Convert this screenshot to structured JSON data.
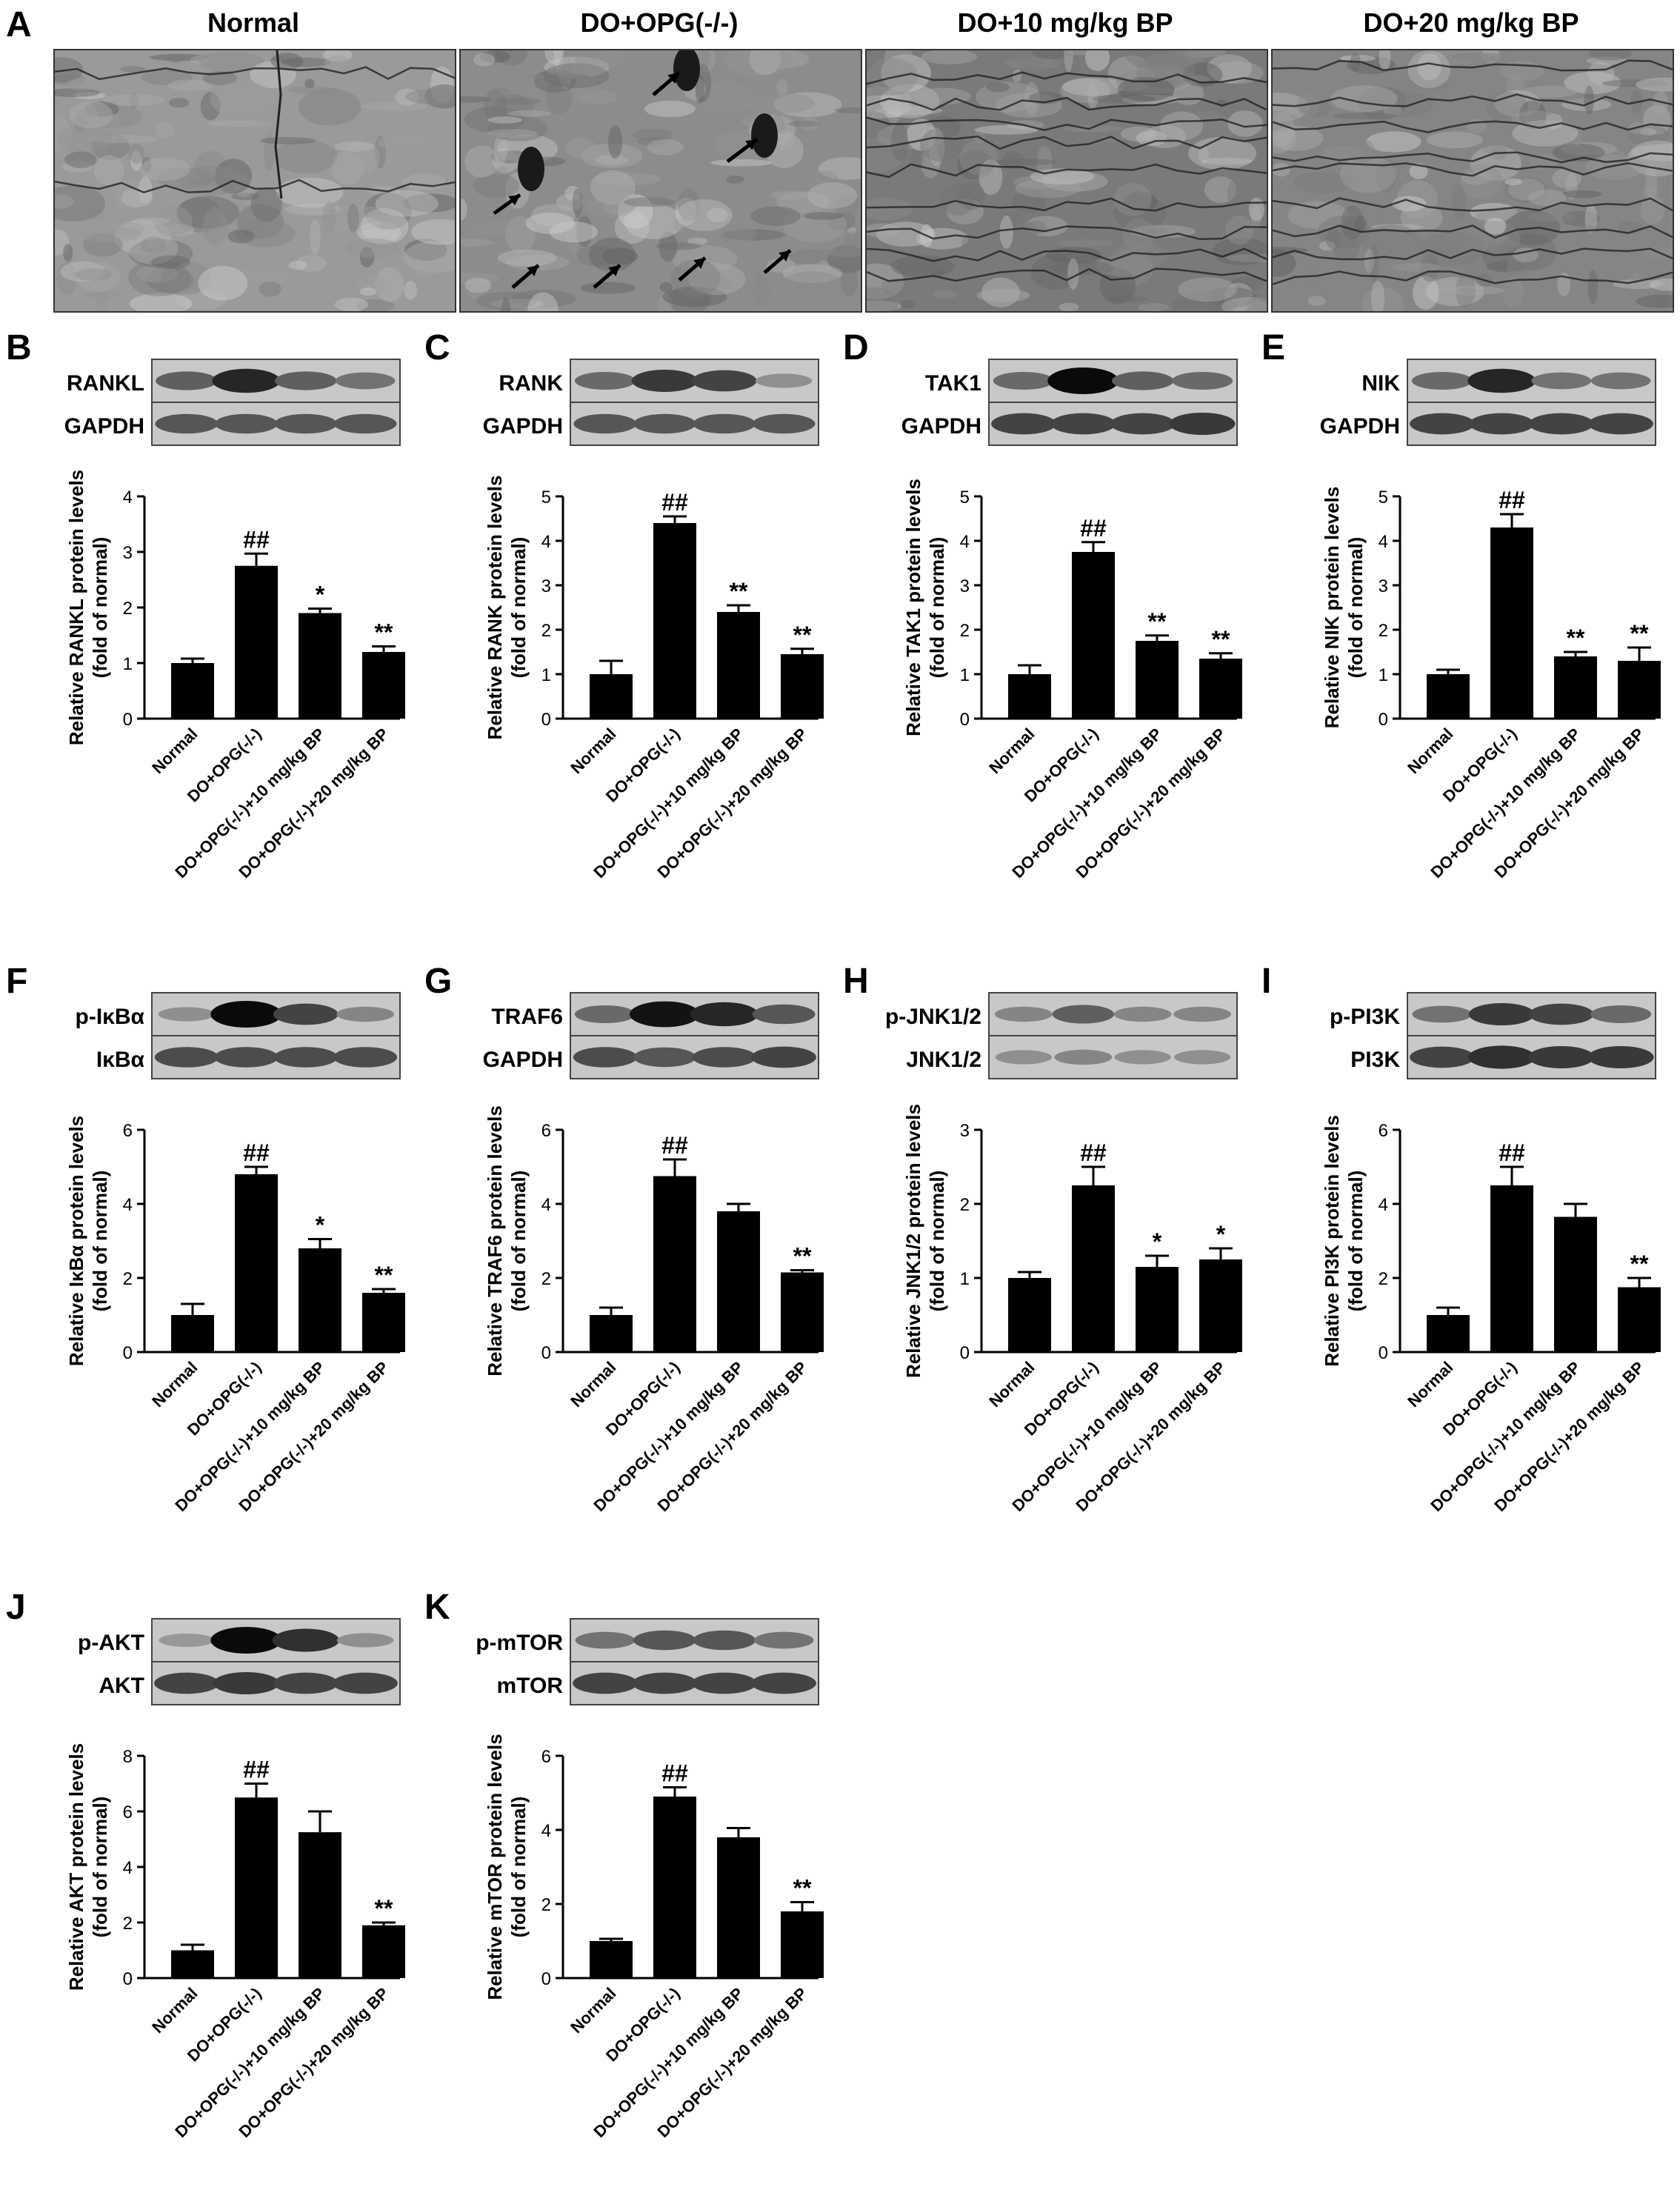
{
  "figure_label_a": "A",
  "sem_panels": [
    {
      "title": "Normal",
      "tone": "#9a9a9a",
      "arrows": 0,
      "cracks": 2
    },
    {
      "title": "DO+OPG(-/-)",
      "tone": "#8c8c8c",
      "arrows": 7,
      "cracks": 0
    },
    {
      "title": "DO+10 mg/kg  BP",
      "tone": "#7a7a7a",
      "arrows": 0,
      "cracks": 9
    },
    {
      "title": "DO+20 mg/kg  BP",
      "tone": "#858585",
      "arrows": 0,
      "cracks": 9
    }
  ],
  "chart_data": [
    {
      "panel": "B",
      "type": "bar",
      "categories": [
        "Normal",
        "DO+OPG(-/-)",
        "DO+OPG(-/-)+10 mg/kg BP",
        "DO+OPG(-/-)+20 mg/kg BP"
      ],
      "values": [
        1.0,
        2.75,
        1.9,
        1.2
      ],
      "errors": [
        0.08,
        0.22,
        0.08,
        0.1
      ],
      "sig": [
        "",
        "##",
        "*",
        "**"
      ],
      "ylabel": "Relative RANKL protein levels",
      "ylabel2": "(fold of normal)",
      "ylim": [
        0,
        4
      ],
      "yticks": [
        0,
        1,
        2,
        3,
        4
      ],
      "blot": {
        "label_top": "RANKL",
        "label_bottom": "GAPDH",
        "top_intensity": [
          0.55,
          0.85,
          0.55,
          0.45
        ],
        "bottom_intensity": [
          0.6,
          0.6,
          0.6,
          0.6
        ]
      }
    },
    {
      "panel": "C",
      "type": "bar",
      "categories": [
        "Normal",
        "DO+OPG(-/-)",
        "DO+OPG(-/-)+10 mg/kg BP",
        "DO+OPG(-/-)+20 mg/kg BP"
      ],
      "values": [
        1.0,
        4.4,
        2.4,
        1.45
      ],
      "errors": [
        0.3,
        0.15,
        0.15,
        0.12
      ],
      "sig": [
        "",
        "##",
        "**",
        "**"
      ],
      "ylabel": "Relative RANK protein levels",
      "ylabel2": "(fold of normal)",
      "ylim": [
        0,
        5
      ],
      "yticks": [
        0,
        1,
        2,
        3,
        4,
        5
      ],
      "blot": {
        "label_top": "RANK",
        "label_bottom": "GAPDH",
        "top_intensity": [
          0.5,
          0.75,
          0.7,
          0.3
        ],
        "bottom_intensity": [
          0.6,
          0.6,
          0.6,
          0.6
        ]
      }
    },
    {
      "panel": "D",
      "type": "bar",
      "categories": [
        "Normal",
        "DO+OPG(-/-)",
        "DO+OPG(-/-)+10 mg/kg BP",
        "DO+OPG(-/-)+20 mg/kg BP"
      ],
      "values": [
        1.0,
        3.75,
        1.75,
        1.35
      ],
      "errors": [
        0.2,
        0.22,
        0.12,
        0.12
      ],
      "sig": [
        "",
        "##",
        "**",
        "**"
      ],
      "ylabel": "Relative TAK1 protein levels",
      "ylabel2": "(fold of normal)",
      "ylim": [
        0,
        5
      ],
      "yticks": [
        0,
        1,
        2,
        3,
        4,
        5
      ],
      "blot": {
        "label_top": "TAK1",
        "label_bottom": "GAPDH",
        "top_intensity": [
          0.5,
          1.0,
          0.55,
          0.5
        ],
        "bottom_intensity": [
          0.7,
          0.7,
          0.7,
          0.75
        ]
      }
    },
    {
      "panel": "E",
      "type": "bar",
      "categories": [
        "Normal",
        "DO+OPG(-/-)",
        "DO+OPG(-/-)+10 mg/kg BP",
        "DO+OPG(-/-)+20 mg/kg BP"
      ],
      "values": [
        1.0,
        4.3,
        1.4,
        1.3
      ],
      "errors": [
        0.1,
        0.3,
        0.1,
        0.3
      ],
      "sig": [
        "",
        "##",
        "**",
        "**"
      ],
      "ylabel": "Relative NIK protein levels",
      "ylabel2": "(fold of normal)",
      "ylim": [
        0,
        5
      ],
      "yticks": [
        0,
        1,
        2,
        3,
        4,
        5
      ],
      "blot": {
        "label_top": "NIK",
        "label_bottom": "GAPDH",
        "top_intensity": [
          0.5,
          0.85,
          0.45,
          0.45
        ],
        "bottom_intensity": [
          0.7,
          0.7,
          0.7,
          0.7
        ]
      }
    },
    {
      "panel": "F",
      "type": "bar",
      "categories": [
        "Normal",
        "DO+OPG(-/-)",
        "DO+OPG(-/-)+10 mg/kg BP",
        "DO+OPG(-/-)+20 mg/kg BP"
      ],
      "values": [
        1.0,
        4.8,
        2.8,
        1.6
      ],
      "errors": [
        0.3,
        0.2,
        0.25,
        0.1
      ],
      "sig": [
        "",
        "##",
        "*",
        "**"
      ],
      "ylabel": "Relative IκBα protein levels",
      "ylabel2": "(fold of normal)",
      "ylim": [
        0,
        6
      ],
      "yticks": [
        0,
        2,
        4,
        6
      ],
      "blot": {
        "label_top": "p-IκBα",
        "label_bottom": "IκBα",
        "top_intensity": [
          0.3,
          1.0,
          0.7,
          0.35
        ],
        "bottom_intensity": [
          0.65,
          0.65,
          0.65,
          0.65
        ]
      }
    },
    {
      "panel": "G",
      "type": "bar",
      "categories": [
        "Normal",
        "DO+OPG(-/-)",
        "DO+OPG(-/-)+10 mg/kg BP",
        "DO+OPG(-/-)+20 mg/kg BP"
      ],
      "values": [
        1.0,
        4.75,
        3.8,
        2.15
      ],
      "errors": [
        0.2,
        0.45,
        0.2,
        0.06
      ],
      "sig": [
        "",
        "##",
        "",
        "**"
      ],
      "ylabel": "Relative TRAF6 protein levels",
      "ylabel2": "(fold of normal)",
      "ylim": [
        0,
        6
      ],
      "yticks": [
        0,
        2,
        4,
        6
      ],
      "blot": {
        "label_top": "TRAF6",
        "label_bottom": "GAPDH",
        "top_intensity": [
          0.5,
          0.95,
          0.85,
          0.6
        ],
        "bottom_intensity": [
          0.65,
          0.6,
          0.65,
          0.7
        ]
      }
    },
    {
      "panel": "H",
      "type": "bar",
      "categories": [
        "Normal",
        "DO+OPG(-/-)",
        "DO+OPG(-/-)+10 mg/kg BP",
        "DO+OPG(-/-)+20 mg/kg BP"
      ],
      "values": [
        1.0,
        2.25,
        1.15,
        1.25
      ],
      "errors": [
        0.08,
        0.25,
        0.15,
        0.15
      ],
      "sig": [
        "",
        "##",
        "*",
        "*"
      ],
      "ylabel": "Relative JNK1/2 protein levels",
      "ylabel2": "(fold of normal)",
      "ylim": [
        0,
        3
      ],
      "yticks": [
        0,
        1,
        2,
        3
      ],
      "blot": {
        "label_top": "p-JNK1/2",
        "label_bottom": "JNK1/2",
        "top_intensity": [
          0.35,
          0.55,
          0.35,
          0.35
        ],
        "bottom_intensity": [
          0.3,
          0.35,
          0.3,
          0.3
        ]
      }
    },
    {
      "panel": "I",
      "type": "bar",
      "categories": [
        "Normal",
        "DO+OPG(-/-)",
        "DO+OPG(-/-)+10 mg/kg BP",
        "DO+OPG(-/-)+20 mg/kg BP"
      ],
      "values": [
        1.0,
        4.5,
        3.65,
        1.75
      ],
      "errors": [
        0.2,
        0.5,
        0.35,
        0.25
      ],
      "sig": [
        "",
        "##",
        "",
        "**"
      ],
      "ylabel": "Relative PI3K protein levels",
      "ylabel2": "(fold of normal)",
      "ylim": [
        0,
        6
      ],
      "yticks": [
        0,
        2,
        4,
        6
      ],
      "blot": {
        "label_top": "p-PI3K",
        "label_bottom": "PI3K",
        "top_intensity": [
          0.45,
          0.75,
          0.7,
          0.5
        ],
        "bottom_intensity": [
          0.7,
          0.8,
          0.75,
          0.75
        ]
      }
    },
    {
      "panel": "J",
      "type": "bar",
      "categories": [
        "Normal",
        "DO+OPG(-/-)",
        "DO+OPG(-/-)+10 mg/kg BP",
        "DO+OPG(-/-)+20 mg/kg BP"
      ],
      "values": [
        1.0,
        6.5,
        5.25,
        1.9
      ],
      "errors": [
        0.2,
        0.5,
        0.75,
        0.1
      ],
      "sig": [
        "",
        "##",
        "",
        "**"
      ],
      "ylabel": "Relative AKT protein levels",
      "ylabel2": "(fold of normal)",
      "ylim": [
        0,
        8
      ],
      "yticks": [
        0,
        2,
        4,
        6,
        8
      ],
      "blot": {
        "label_top": "p-AKT",
        "label_bottom": "AKT",
        "top_intensity": [
          0.25,
          1.0,
          0.8,
          0.3
        ],
        "bottom_intensity": [
          0.7,
          0.75,
          0.7,
          0.7
        ]
      }
    },
    {
      "panel": "K",
      "type": "bar",
      "categories": [
        "Normal",
        "DO+OPG(-/-)",
        "DO+OPG(-/-)+10 mg/kg BP",
        "DO+OPG(-/-)+20 mg/kg BP"
      ],
      "values": [
        1.0,
        4.9,
        3.8,
        1.8
      ],
      "errors": [
        0.06,
        0.25,
        0.25,
        0.25
      ],
      "sig": [
        "",
        "##",
        "",
        "**"
      ],
      "ylabel": "Relative mTOR protein levels",
      "ylabel2": "(fold of normal)",
      "ylim": [
        0,
        6
      ],
      "yticks": [
        0,
        2,
        4,
        6
      ],
      "blot": {
        "label_top": "p-mTOR",
        "label_bottom": "mTOR",
        "top_intensity": [
          0.45,
          0.6,
          0.6,
          0.45
        ],
        "bottom_intensity": [
          0.7,
          0.7,
          0.7,
          0.7
        ]
      }
    }
  ]
}
